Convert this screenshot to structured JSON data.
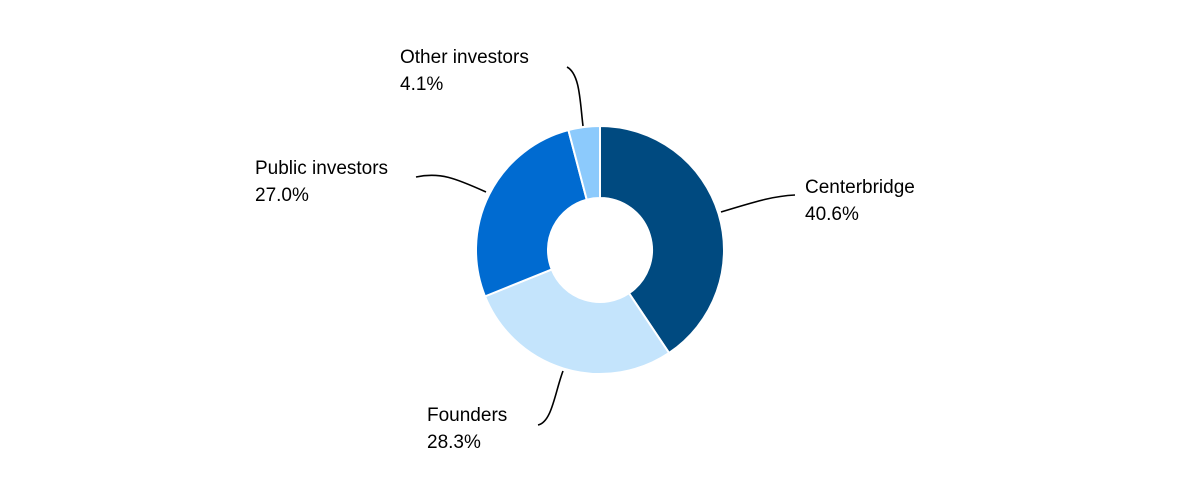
{
  "chart_data": {
    "type": "pie",
    "title": "",
    "hole": true,
    "slices": [
      {
        "label": "Centerbridge",
        "value": 40.6,
        "value_label": "40.6%",
        "color": "#004a80"
      },
      {
        "label": "Founders",
        "value": 28.3,
        "value_label": "28.3%",
        "color": "#c4e4fc"
      },
      {
        "label": "Public investors",
        "value": 27.0,
        "value_label": "27.0%",
        "color": "#006bd1"
      },
      {
        "label": "Other investors",
        "value": 4.1,
        "value_label": "4.1%",
        "color": "#8ccafc"
      }
    ],
    "labels_outside": true,
    "legend": "none"
  }
}
